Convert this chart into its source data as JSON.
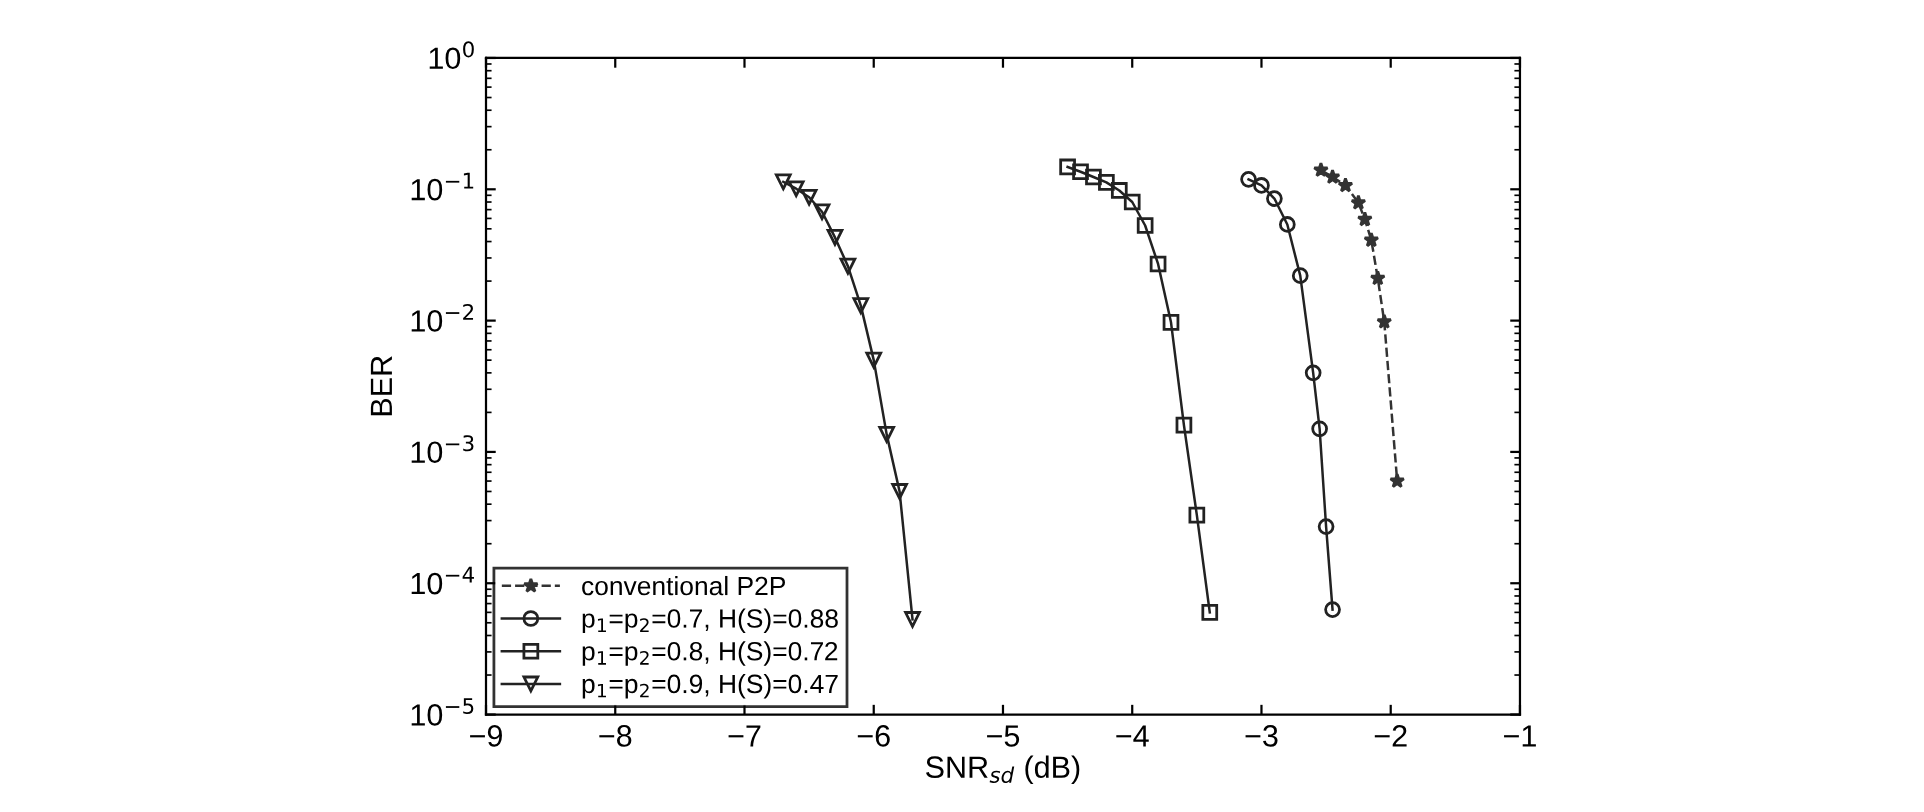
{
  "chart_data": {
    "type": "line",
    "xlabel": "SNR$_{sd}$ (dB)",
    "ylabel": "BER",
    "log": "y",
    "grid": false,
    "legend": "bottom left",
    "xlim": [
      -9,
      -1
    ],
    "xticks": [
      {
        "value": -9,
        "label": "−9"
      },
      {
        "value": -8,
        "label": "−8"
      },
      {
        "value": -7,
        "label": "−7"
      },
      {
        "value": -6,
        "label": "−6"
      },
      {
        "value": -5,
        "label": "−5"
      },
      {
        "value": -4,
        "label": "−4"
      },
      {
        "value": -3,
        "label": "−3"
      },
      {
        "value": -2,
        "label": "−2"
      },
      {
        "value": -1,
        "label": "−1"
      }
    ],
    "ylim": [
      1e-05,
      1
    ],
    "yticks": [
      {
        "value": 1e-05,
        "label": "10$^{−5}$"
      },
      {
        "value": 0.0001,
        "label": "10$^{−4}$"
      },
      {
        "value": 0.001,
        "label": "10$^{−3}$"
      },
      {
        "value": 0.01,
        "label": "10$^{−2}$"
      },
      {
        "value": 0.1,
        "label": "10$^{−1}$"
      },
      {
        "value": 1,
        "label": "10$^{0}$"
      }
    ],
    "series": [
      {
        "name": "conventional P2P",
        "color": "#333333",
        "marker": "star",
        "line_style": "dashed",
        "x": [
          -2.54,
          -2.45,
          -2.35,
          -2.25,
          -2.2,
          -2.15,
          -2.1,
          -2.05,
          -1.95
        ],
        "values": [
          0.14,
          0.124,
          0.107,
          0.079,
          0.059,
          0.041,
          0.021,
          0.0098,
          0.0006
        ]
      },
      {
        "name": "p$_{1}$=p$_{2}$=0.7, H(S)=0.88",
        "color": "#222222",
        "marker": "circle",
        "line_style": "solid",
        "x": [
          -3.1,
          -3.0,
          -2.9,
          -2.8,
          -2.7,
          -2.6,
          -2.55,
          -2.5,
          -2.45
        ],
        "values": [
          0.119,
          0.107,
          0.085,
          0.054,
          0.022,
          0.004,
          0.0015,
          0.00027,
          6.3e-05
        ]
      },
      {
        "name": "p$_{1}$=p$_{2}$=0.8, H(S)=0.72",
        "color": "#222222",
        "marker": "square",
        "line_style": "solid",
        "x": [
          -4.5,
          -4.4,
          -4.3,
          -4.2,
          -4.1,
          -4.0,
          -3.9,
          -3.8,
          -3.7,
          -3.6,
          -3.5,
          -3.4
        ],
        "values": [
          0.148,
          0.136,
          0.124,
          0.113,
          0.098,
          0.08,
          0.053,
          0.027,
          0.0097,
          0.0016,
          0.00033,
          6e-05
        ]
      },
      {
        "name": "p$_{1}$=p$_{2}$=0.9, H(S)=0.47",
        "color": "#222222",
        "marker": "triangle",
        "line_style": "solid",
        "x": [
          -6.7,
          -6.6,
          -6.5,
          -6.4,
          -6.3,
          -6.2,
          -6.1,
          -6.0,
          -5.9,
          -5.8,
          -5.7
        ],
        "values": [
          0.114,
          0.101,
          0.087,
          0.0675,
          0.043,
          0.026,
          0.013,
          0.005,
          0.00136,
          0.0005,
          5.3e-05
        ]
      }
    ]
  }
}
